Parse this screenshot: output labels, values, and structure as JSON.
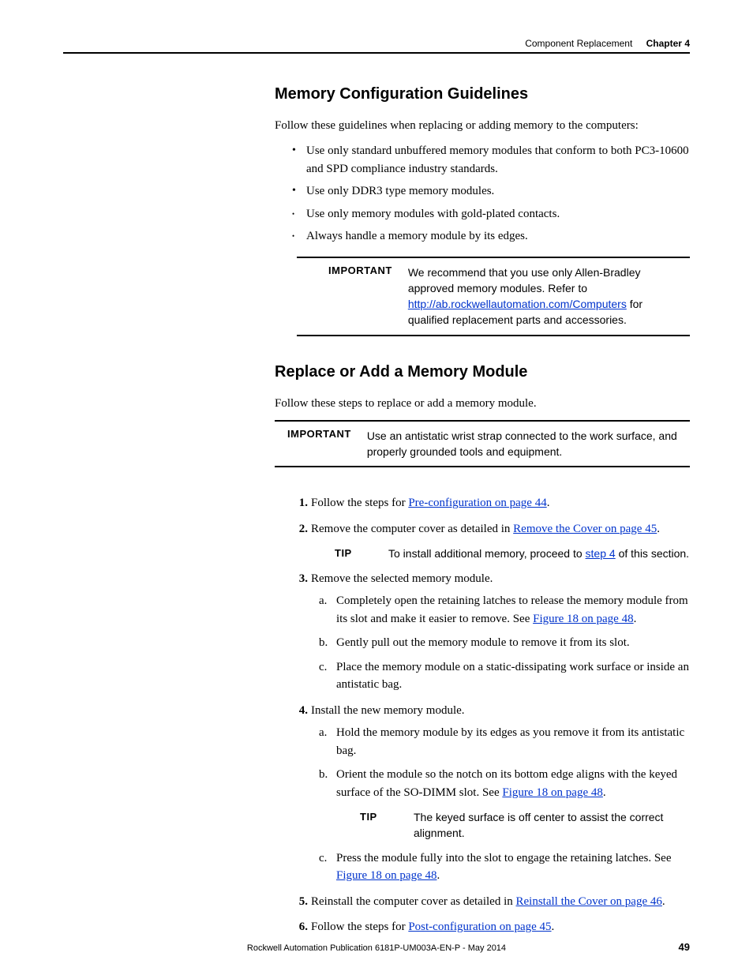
{
  "header": {
    "section": "Component Replacement",
    "chapter": "Chapter 4"
  },
  "sec1": {
    "title": "Memory Configuration Guidelines",
    "intro": "Follow these guidelines when replacing or adding memory to the computers:",
    "bullets": [
      "Use only standard unbuffered memory modules that conform to both PC3-10600 and SPD compliance industry standards.",
      "Use only DDR3 type memory modules.",
      "Use only memory modules with gold-plated contacts.",
      "Always handle a memory module by its edges."
    ],
    "important": {
      "label": "IMPORTANT",
      "pre": "We recommend that you use only Allen-Bradley approved memory modules. Refer to ",
      "link": "http://ab.rockwellautomation.com/Computers",
      "post": " for qualified replacement parts and accessories."
    }
  },
  "sec2": {
    "title": "Replace or Add a Memory Module",
    "intro": "Follow these steps to replace or add a memory module.",
    "important": {
      "label": "IMPORTANT",
      "text": "Use an antistatic wrist strap connected to the work surface, and properly grounded tools and equipment."
    },
    "steps": {
      "s1_pre": "Follow the steps for ",
      "s1_link": "Pre-configuration on page 44",
      "s1_post": ".",
      "s2_pre": "Remove the computer cover as detailed in ",
      "s2_link": "Remove the Cover on page 45",
      "s2_post": ".",
      "tip1_label": "TIP",
      "tip1_pre": "To install additional memory, proceed to ",
      "tip1_link": "step 4",
      "tip1_post": " of this section.",
      "s3": "Remove the selected memory module.",
      "s3a_pre": "Completely open the retaining latches to release the memory module from its slot and make it easier to remove. See ",
      "s3a_link": "Figure 18 on page 48",
      "s3a_post": ".",
      "s3b": "Gently pull out the memory module to remove it from its slot.",
      "s3c": "Place the memory module on a static-dissipating work surface or inside an antistatic bag.",
      "s4": "Install the new memory module.",
      "s4a": "Hold the memory module by its edges as you remove it from its antistatic bag.",
      "s4b_pre": "Orient the module so the notch on its bottom edge aligns with the keyed surface of the SO-DIMM slot. See ",
      "s4b_link": "Figure 18 on page 48",
      "s4b_post": ".",
      "tip2_label": "TIP",
      "tip2_text": "The keyed surface is off center to assist the correct alignment.",
      "s4c_pre": "Press the module fully into the slot to engage the retaining latches. See ",
      "s4c_link": "Figure 18 on page 48",
      "s4c_post": ".",
      "s5_pre": "Reinstall the computer cover as detailed in ",
      "s5_link": "Reinstall the Cover on page 46",
      "s5_post": ".",
      "s6_pre": "Follow the steps for ",
      "s6_link": "Post-configuration on page 45",
      "s6_post": "."
    }
  },
  "footer": {
    "pub": "Rockwell Automation Publication 6181P-UM003A-EN-P - May 2014",
    "page": "49"
  }
}
